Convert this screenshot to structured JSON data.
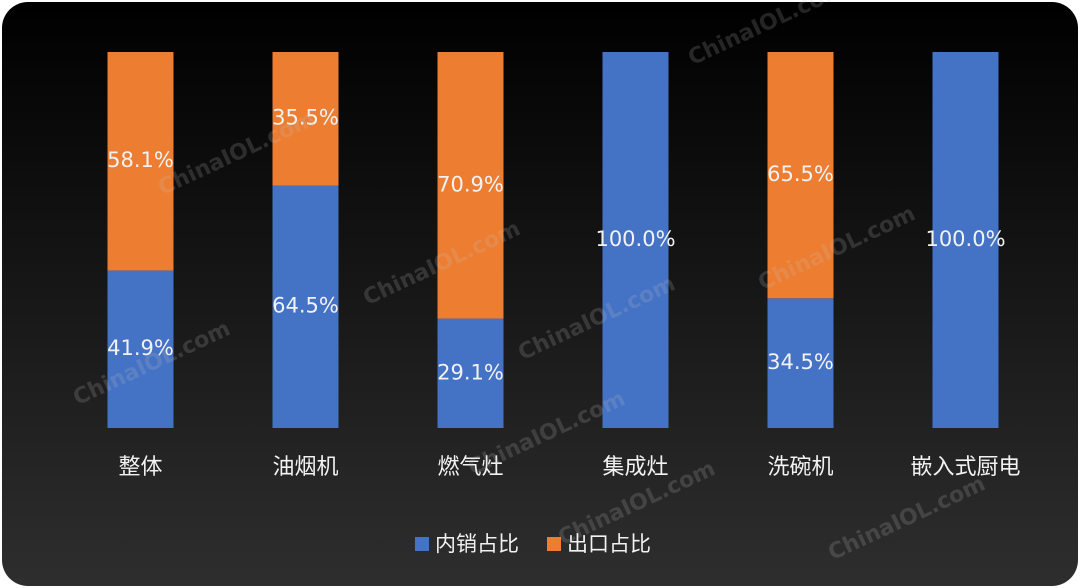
{
  "chart_data": {
    "type": "stacked_bar",
    "categories": [
      "整体",
      "油烟机",
      "燃气灶",
      "集成灶",
      "洗碗机",
      "嵌入式厨电"
    ],
    "series": [
      {
        "name": "内销占比",
        "color": "#4472c4",
        "values": [
          41.9,
          64.5,
          29.1,
          100,
          34.5,
          100
        ],
        "value_labels": [
          "41.9%",
          "64.5%",
          "29.1%",
          "100.0%",
          "34.5%",
          "100.0%"
        ]
      },
      {
        "name": "出口占比",
        "color": "#ed7d31",
        "values": [
          58.1,
          35.5,
          70.9,
          0,
          65.5,
          0
        ],
        "value_labels": [
          "58.1%",
          "35.5%",
          "70.9%",
          null,
          "65.5%",
          null
        ]
      }
    ],
    "ylim": [
      0,
      100
    ],
    "legend": "bottom",
    "watermark": "ChinaIOL.com"
  }
}
